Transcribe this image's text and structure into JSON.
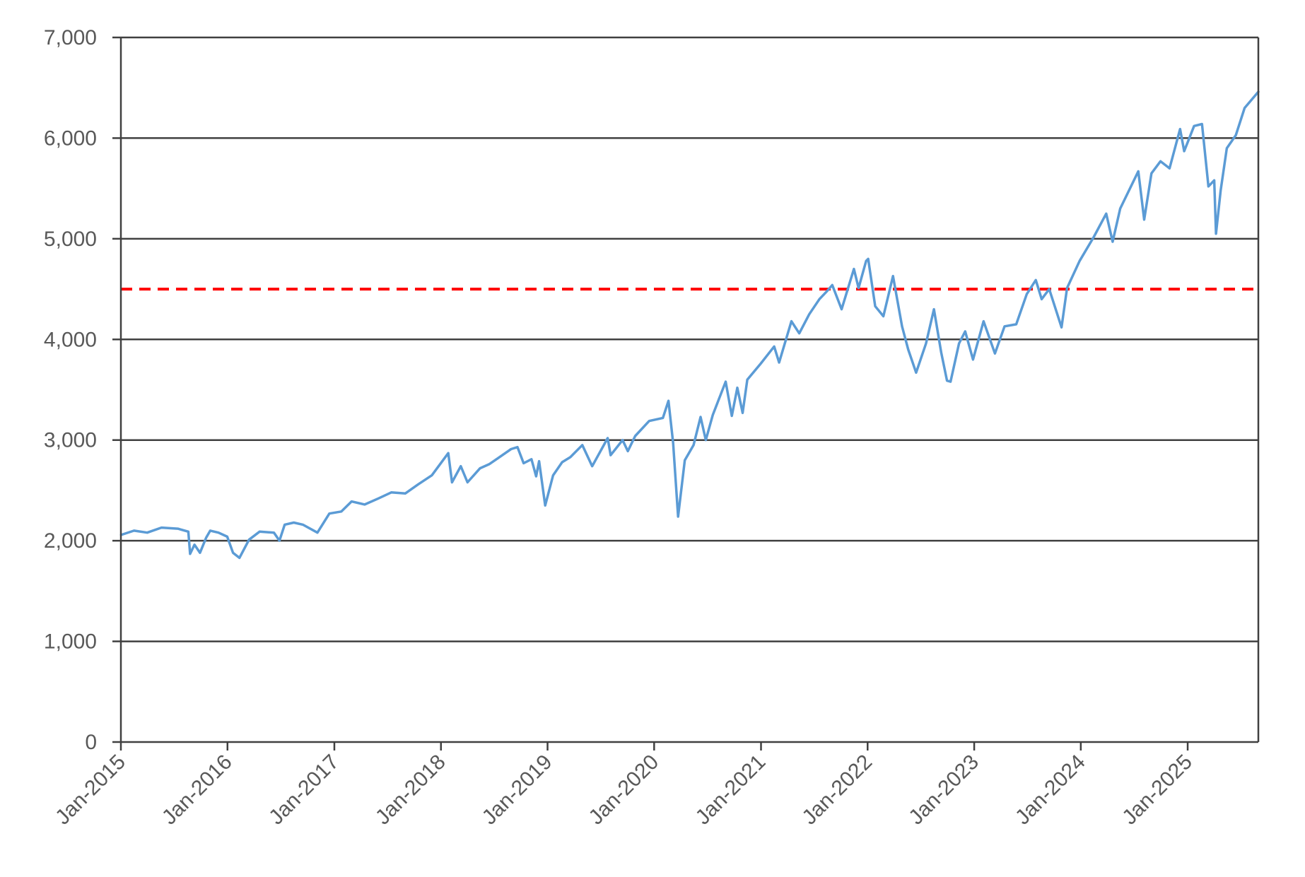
{
  "chart_data": {
    "type": "line",
    "title": "",
    "xlabel": "",
    "ylabel": "",
    "ylim": [
      0,
      7000
    ],
    "xlim": [
      "2015-01-01",
      "2025-08-31"
    ],
    "yticks": [
      0,
      1000,
      2000,
      3000,
      4000,
      5000,
      6000,
      7000
    ],
    "ytick_labels": [
      "0",
      "1,000",
      "2,000",
      "3,000",
      "4,000",
      "5,000",
      "6,000",
      "7,000"
    ],
    "xticks": [
      "2015-01-01",
      "2016-01-01",
      "2017-01-01",
      "2018-01-01",
      "2019-01-01",
      "2020-01-01",
      "2021-01-01",
      "2022-01-01",
      "2023-01-01",
      "2024-01-01",
      "2025-01-01"
    ],
    "xtick_labels": [
      "Jan-2015",
      "Jan-2016",
      "Jan-2017",
      "Jan-2018",
      "Jan-2019",
      "Jan-2020",
      "Jan-2021",
      "Jan-2022",
      "Jan-2023",
      "Jan-2024",
      "Jan-2025"
    ],
    "grid": true,
    "legend": "none",
    "series": [
      {
        "color": "#5b9bd5",
        "x": [
          "2015-01-02",
          "2015-02-15",
          "2015-04-01",
          "2015-05-20",
          "2015-07-15",
          "2015-08-20",
          "2015-08-26",
          "2015-09-10",
          "2015-09-29",
          "2015-10-20",
          "2015-11-03",
          "2015-12-01",
          "2015-12-31",
          "2016-01-20",
          "2016-02-11",
          "2016-03-15",
          "2016-04-20",
          "2016-06-08",
          "2016-06-27",
          "2016-07-15",
          "2016-08-15",
          "2016-09-15",
          "2016-11-04",
          "2016-12-15",
          "2017-01-25",
          "2017-03-01",
          "2017-04-15",
          "2017-06-01",
          "2017-07-15",
          "2017-09-01",
          "2017-10-15",
          "2017-12-01",
          "2018-01-26",
          "2018-02-08",
          "2018-03-10",
          "2018-04-02",
          "2018-05-15",
          "2018-06-15",
          "2018-07-15",
          "2018-08-29",
          "2018-09-20",
          "2018-10-11",
          "2018-11-07",
          "2018-11-23",
          "2018-12-03",
          "2018-12-24",
          "2019-01-20",
          "2019-02-20",
          "2019-03-20",
          "2019-04-30",
          "2019-06-03",
          "2019-07-26",
          "2019-08-05",
          "2019-09-15",
          "2019-10-03",
          "2019-10-28",
          "2019-12-15",
          "2020-01-31",
          "2020-02-19",
          "2020-03-06",
          "2020-03-23",
          "2020-04-15",
          "2020-05-15",
          "2020-06-08",
          "2020-06-26",
          "2020-07-20",
          "2020-09-02",
          "2020-09-23",
          "2020-10-12",
          "2020-10-30",
          "2020-11-15",
          "2020-12-31",
          "2021-02-15",
          "2021-03-04",
          "2021-04-15",
          "2021-05-12",
          "2021-06-15",
          "2021-07-20",
          "2021-08-15",
          "2021-09-02",
          "2021-10-04",
          "2021-11-15",
          "2021-12-01",
          "2021-12-27",
          "2022-01-03",
          "2022-01-27",
          "2022-02-24",
          "2022-03-29",
          "2022-04-29",
          "2022-05-20",
          "2022-06-16",
          "2022-07-20",
          "2022-08-16",
          "2022-09-10",
          "2022-09-30",
          "2022-10-12",
          "2022-11-10",
          "2022-12-01",
          "2022-12-28",
          "2023-02-02",
          "2023-03-13",
          "2023-04-15",
          "2023-05-25",
          "2023-06-30",
          "2023-07-31",
          "2023-08-20",
          "2023-09-15",
          "2023-10-27",
          "2023-11-15",
          "2023-12-28",
          "2024-02-15",
          "2024-03-28",
          "2024-04-19",
          "2024-05-15",
          "2024-07-16",
          "2024-08-05",
          "2024-08-30",
          "2024-09-30",
          "2024-10-31",
          "2024-12-06",
          "2024-12-20",
          "2025-01-23",
          "2025-02-19",
          "2025-03-13",
          "2025-04-02",
          "2025-04-08",
          "2025-04-24",
          "2025-05-15",
          "2025-06-15",
          "2025-07-15",
          "2025-08-31"
        ],
        "y": [
          2058,
          2100,
          2080,
          2130,
          2120,
          2090,
          1870,
          1960,
          1880,
          2030,
          2100,
          2080,
          2040,
          1880,
          1830,
          2010,
          2090,
          2080,
          2000,
          2160,
          2180,
          2160,
          2080,
          2270,
          2290,
          2390,
          2360,
          2420,
          2480,
          2470,
          2560,
          2650,
          2870,
          2580,
          2740,
          2580,
          2720,
          2760,
          2820,
          2910,
          2930,
          2770,
          2810,
          2640,
          2790,
          2350,
          2650,
          2780,
          2830,
          2950,
          2740,
          3020,
          2850,
          3000,
          2890,
          3040,
          3190,
          3220,
          3390,
          2970,
          2240,
          2800,
          2950,
          3230,
          3000,
          3250,
          3580,
          3240,
          3520,
          3270,
          3600,
          3760,
          3930,
          3770,
          4180,
          4060,
          4250,
          4400,
          4480,
          4540,
          4300,
          4700,
          4510,
          4780,
          4800,
          4330,
          4230,
          4630,
          4130,
          3900,
          3670,
          3960,
          4300,
          3870,
          3590,
          3580,
          3960,
          4080,
          3800,
          4180,
          3860,
          4130,
          4150,
          4450,
          4590,
          4400,
          4500,
          4120,
          4510,
          4780,
          5020,
          5250,
          4970,
          5300,
          5670,
          5190,
          5650,
          5770,
          5700,
          6090,
          5870,
          6120,
          6140,
          5520,
          5580,
          5050,
          5480,
          5900,
          6030,
          6300,
          6460
        ]
      }
    ],
    "reference_lines": [
      {
        "y": 4500,
        "color": "#ff0000",
        "style": "dashed"
      }
    ]
  }
}
